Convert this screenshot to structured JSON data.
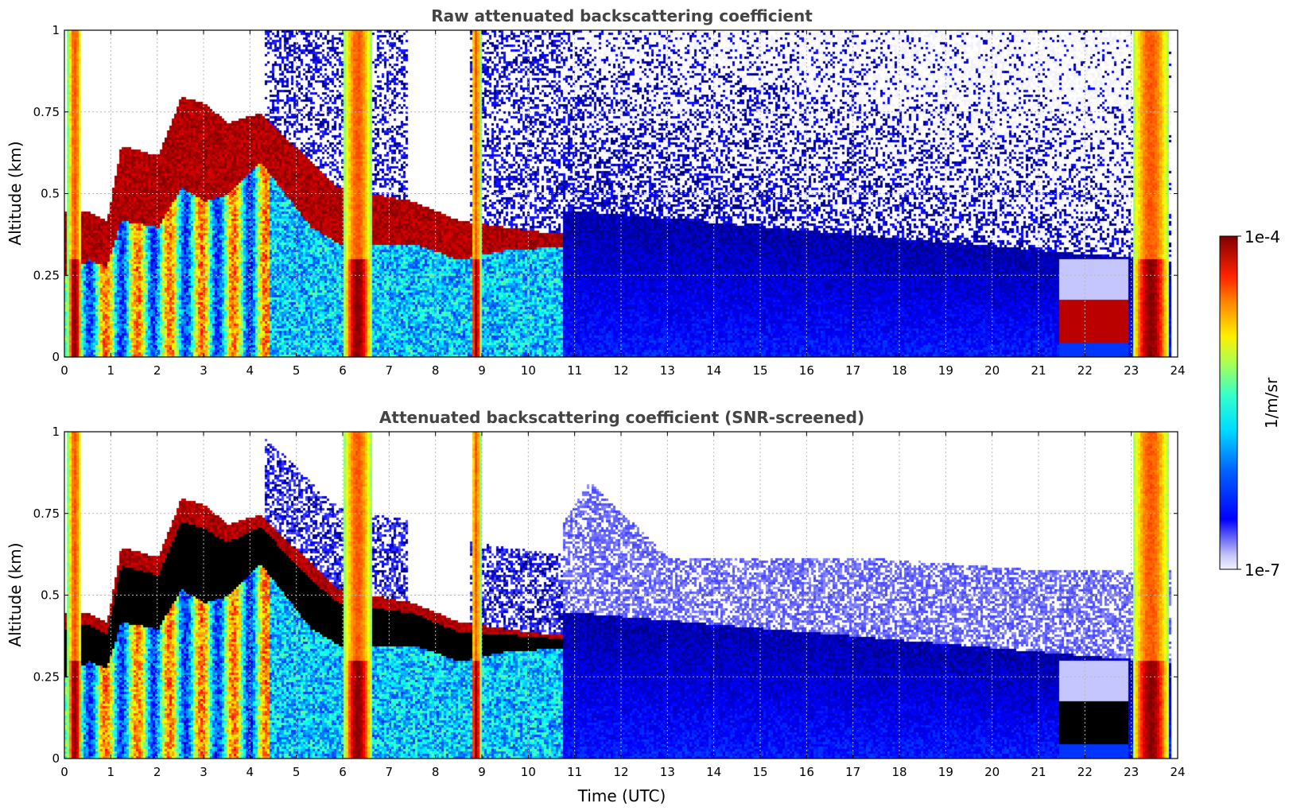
{
  "chart_data": [
    {
      "type": "heatmap",
      "title": "Raw attenuated backscattering coefficient",
      "ylabel": "Altitude (km)",
      "xlabel": "",
      "xlim": [
        0,
        24
      ],
      "ylim": [
        0,
        1
      ],
      "x_ticks": [
        "0",
        "1",
        "2",
        "3",
        "4",
        "5",
        "6",
        "7",
        "8",
        "9",
        "10",
        "11",
        "12",
        "13",
        "14",
        "15",
        "16",
        "17",
        "18",
        "19",
        "20",
        "21",
        "22",
        "23",
        "24"
      ],
      "y_ticks": [
        "0",
        "0.25",
        "0.5",
        "0.75",
        "1"
      ],
      "grid": true,
      "features": {
        "cloud_layer": [
          {
            "t": 0.0,
            "base": 0.25,
            "top": 0.45
          },
          {
            "t": 0.5,
            "base": 0.3,
            "top": 0.45
          },
          {
            "t": 0.9,
            "base": 0.28,
            "top": 0.42
          },
          {
            "t": 1.2,
            "base": 0.42,
            "top": 0.65
          },
          {
            "t": 2.0,
            "base": 0.4,
            "top": 0.62
          },
          {
            "t": 2.5,
            "base": 0.52,
            "top": 0.8
          },
          {
            "t": 3.0,
            "base": 0.48,
            "top": 0.78
          },
          {
            "t": 3.5,
            "base": 0.5,
            "top": 0.72
          },
          {
            "t": 4.2,
            "base": 0.6,
            "top": 0.75
          },
          {
            "t": 5.3,
            "base": 0.4,
            "top": 0.6
          },
          {
            "t": 5.9,
            "base": 0.35,
            "top": 0.52
          },
          {
            "t": 7.5,
            "base": 0.35,
            "top": 0.48
          },
          {
            "t": 8.5,
            "base": 0.3,
            "top": 0.42
          },
          {
            "t": 9.5,
            "base": 0.33,
            "top": 0.4
          },
          {
            "t": 10.6,
            "base": 0.34,
            "top": 0.38
          }
        ],
        "rain_columns_h": [
          [
            0.05,
            0.35
          ],
          [
            6.0,
            6.6
          ],
          [
            8.75,
            8.95
          ],
          [
            23.0,
            23.8
          ]
        ],
        "low_cloud": {
          "t_start": 21.4,
          "t_end": 22.9,
          "base": 0.05,
          "top": 0.18
        }
      }
    },
    {
      "type": "heatmap",
      "title": "Attenuated backscattering coefficient (SNR-screened)",
      "ylabel": "Altitude (km)",
      "xlabel": "Time (UTC)",
      "xlim": [
        0,
        24
      ],
      "ylim": [
        0,
        1
      ],
      "x_ticks": [
        "0",
        "1",
        "2",
        "3",
        "4",
        "5",
        "6",
        "7",
        "8",
        "9",
        "10",
        "11",
        "12",
        "13",
        "14",
        "15",
        "16",
        "17",
        "18",
        "19",
        "20",
        "21",
        "22",
        "23",
        "24"
      ],
      "y_ticks": [
        "0",
        "0.25",
        "0.5",
        "0.75",
        "1"
      ],
      "grid": true,
      "features": {
        "saturated_color": "#000000",
        "screened_top_km": [
          {
            "t": 9.5,
            "top": 0.45
          },
          {
            "t": 11.3,
            "top": 0.85
          },
          {
            "t": 13.0,
            "top": 0.62
          },
          {
            "t": 17.0,
            "top": 0.62
          },
          {
            "t": 21.0,
            "top": 0.58
          }
        ]
      }
    }
  ],
  "colorbar": {
    "label": "1/m/sr",
    "max_label": "1e-4",
    "min_label": "1e-7",
    "colormap": "jet",
    "scale": "log",
    "range": [
      1e-07,
      0.0001
    ]
  }
}
